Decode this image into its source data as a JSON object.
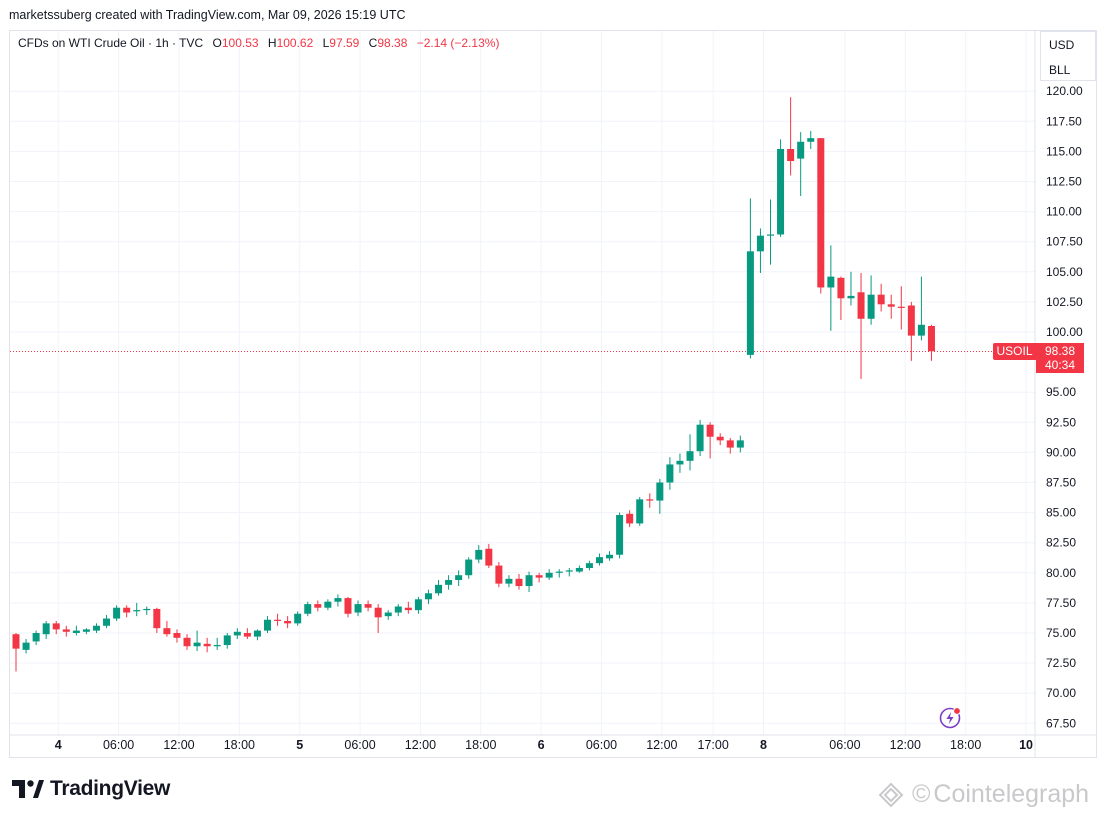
{
  "header": {
    "credit": "marketssuberg created with TradingView.com, Mar 09, 2026 15:19 UTC"
  },
  "legend": {
    "symbol": "CFDs on WTI Crude Oil · 1h · TVC",
    "o_label": "O",
    "o_value": "100.53",
    "h_label": "H",
    "h_value": "100.62",
    "l_label": "L",
    "l_value": "97.59",
    "c_label": "C",
    "c_value": "98.38",
    "change": "−2.14 (−2.13%)"
  },
  "scale": {
    "currency": "USD",
    "unit": "BLL"
  },
  "price_tag": {
    "symbol": "USOIL",
    "price": "98.38",
    "countdown": "40:34"
  },
  "brand": {
    "name": "TradingView"
  },
  "watermark": {
    "text": "Cointelegraph"
  },
  "colors": {
    "up": "#089981",
    "down": "#f23645",
    "grid": "#f0f3fa",
    "text": "#131722"
  },
  "chart_data": {
    "type": "candlestick",
    "y_ticks": [
      "67.50",
      "70.00",
      "72.50",
      "75.00",
      "77.50",
      "80.00",
      "82.50",
      "85.00",
      "87.50",
      "90.00",
      "92.50",
      "95.00",
      "100.00",
      "102.50",
      "105.00",
      "107.50",
      "110.00",
      "112.50",
      "115.00",
      "117.50",
      "120.00"
    ],
    "x_ticks": [
      {
        "label": "4",
        "bar": 4.2,
        "bold": true
      },
      {
        "label": "06:00",
        "bar": 10.2
      },
      {
        "label": "12:00",
        "bar": 16.2
      },
      {
        "label": "18:00",
        "bar": 22.2
      },
      {
        "label": "5",
        "bar": 28.2,
        "bold": true
      },
      {
        "label": "06:00",
        "bar": 34.2
      },
      {
        "label": "12:00",
        "bar": 40.2
      },
      {
        "label": "18:00",
        "bar": 46.2
      },
      {
        "label": "6",
        "bar": 52.2,
        "bold": true
      },
      {
        "label": "06:00",
        "bar": 58.2
      },
      {
        "label": "12:00",
        "bar": 64.2
      },
      {
        "label": "17:00",
        "bar": 69.3
      },
      {
        "label": "8",
        "bar": 74.3,
        "bold": true
      },
      {
        "label": "06:00",
        "bar": 82.4
      },
      {
        "label": "12:00",
        "bar": 88.4
      },
      {
        "label": "18:00",
        "bar": 94.4
      },
      {
        "label": "10",
        "bar": 100.4,
        "bold": true
      }
    ],
    "last_price": 98.38,
    "ylim": [
      66.5,
      121.5
    ],
    "candles": [
      [
        74.9,
        75.0,
        71.8,
        73.7
      ],
      [
        73.6,
        74.5,
        73.3,
        74.2
      ],
      [
        74.3,
        75.2,
        74.0,
        75.0
      ],
      [
        74.9,
        76.0,
        74.5,
        75.8
      ],
      [
        75.8,
        76.0,
        74.9,
        75.3
      ],
      [
        75.3,
        75.6,
        74.7,
        75.1
      ],
      [
        75.0,
        75.6,
        74.8,
        75.2
      ],
      [
        75.1,
        75.4,
        74.9,
        75.3
      ],
      [
        75.2,
        75.8,
        75.0,
        75.6
      ],
      [
        75.6,
        76.5,
        75.4,
        76.2
      ],
      [
        76.2,
        77.3,
        76.0,
        77.1
      ],
      [
        77.1,
        77.3,
        76.3,
        76.7
      ],
      [
        76.8,
        77.5,
        76.4,
        76.9
      ],
      [
        76.9,
        77.2,
        76.5,
        77.0
      ],
      [
        77.0,
        77.1,
        75.0,
        75.4
      ],
      [
        75.4,
        76.0,
        74.7,
        74.9
      ],
      [
        75.0,
        75.3,
        74.2,
        74.6
      ],
      [
        74.6,
        74.9,
        73.6,
        73.9
      ],
      [
        73.9,
        75.2,
        73.5,
        74.2
      ],
      [
        74.1,
        74.6,
        73.4,
        73.9
      ],
      [
        73.9,
        74.6,
        73.6,
        74.0
      ],
      [
        74.0,
        75.0,
        73.7,
        74.8
      ],
      [
        74.8,
        75.4,
        74.5,
        75.1
      ],
      [
        75.0,
        75.4,
        74.5,
        74.7
      ],
      [
        74.7,
        75.3,
        74.4,
        75.2
      ],
      [
        75.2,
        76.4,
        75.0,
        76.1
      ],
      [
        76.1,
        76.6,
        75.6,
        76.0
      ],
      [
        76.0,
        76.4,
        75.4,
        75.8
      ],
      [
        75.8,
        76.8,
        75.6,
        76.6
      ],
      [
        76.6,
        77.6,
        76.4,
        77.4
      ],
      [
        77.4,
        77.7,
        76.8,
        77.1
      ],
      [
        77.1,
        77.8,
        76.9,
        77.6
      ],
      [
        77.6,
        78.2,
        77.2,
        77.9
      ],
      [
        77.9,
        78.0,
        76.3,
        76.6
      ],
      [
        76.7,
        77.7,
        76.4,
        77.4
      ],
      [
        77.4,
        77.7,
        76.8,
        77.1
      ],
      [
        77.1,
        77.4,
        75.0,
        76.3
      ],
      [
        76.4,
        76.9,
        76.1,
        76.7
      ],
      [
        76.7,
        77.4,
        76.4,
        77.2
      ],
      [
        77.1,
        77.6,
        76.6,
        76.9
      ],
      [
        76.9,
        78.0,
        76.6,
        77.8
      ],
      [
        77.8,
        78.6,
        77.4,
        78.3
      ],
      [
        78.3,
        79.4,
        78.1,
        79.0
      ],
      [
        79.0,
        79.8,
        78.6,
        79.4
      ],
      [
        79.4,
        80.2,
        78.9,
        79.8
      ],
      [
        79.8,
        81.3,
        79.5,
        81.1
      ],
      [
        81.1,
        82.3,
        80.8,
        81.9
      ],
      [
        82.0,
        82.4,
        80.4,
        80.6
      ],
      [
        80.6,
        80.9,
        78.8,
        79.1
      ],
      [
        79.1,
        79.8,
        78.8,
        79.5
      ],
      [
        79.5,
        79.9,
        78.6,
        78.9
      ],
      [
        78.9,
        80.1,
        78.4,
        79.8
      ],
      [
        79.8,
        80.0,
        79.2,
        79.6
      ],
      [
        79.6,
        80.3,
        79.4,
        80.0
      ],
      [
        80.0,
        80.3,
        79.6,
        80.1
      ],
      [
        80.1,
        80.4,
        79.7,
        80.2
      ],
      [
        80.1,
        80.6,
        80.0,
        80.4
      ],
      [
        80.4,
        81.0,
        80.2,
        80.8
      ],
      [
        80.8,
        81.6,
        80.6,
        81.3
      ],
      [
        81.2,
        81.8,
        81.0,
        81.5
      ],
      [
        81.5,
        85.0,
        81.2,
        84.8
      ],
      [
        84.9,
        85.2,
        83.8,
        84.1
      ],
      [
        84.1,
        86.3,
        83.9,
        86.1
      ],
      [
        86.1,
        86.6,
        85.4,
        86.0
      ],
      [
        86.0,
        87.8,
        84.9,
        87.5
      ],
      [
        87.5,
        89.6,
        86.9,
        89.0
      ],
      [
        89.0,
        89.9,
        88.3,
        89.3
      ],
      [
        89.3,
        91.5,
        88.5,
        90.1
      ],
      [
        90.1,
        92.7,
        89.7,
        92.3
      ],
      [
        92.3,
        92.5,
        89.5,
        91.3
      ],
      [
        91.3,
        91.6,
        90.6,
        91.0
      ],
      [
        91.0,
        91.2,
        89.9,
        90.4
      ],
      [
        90.4,
        91.4,
        90.0,
        91.0
      ],
      [
        98.1,
        111.1,
        97.8,
        106.7
      ],
      [
        106.7,
        108.6,
        104.9,
        108.0
      ],
      [
        108.0,
        111.0,
        105.6,
        108.1
      ],
      [
        108.1,
        116.0,
        107.9,
        115.2
      ],
      [
        115.2,
        119.5,
        113.0,
        114.2
      ],
      [
        114.4,
        116.6,
        111.3,
        115.8
      ],
      [
        115.8,
        116.7,
        115.2,
        116.1
      ],
      [
        116.1,
        116.1,
        103.2,
        103.7
      ],
      [
        103.7,
        107.2,
        100.1,
        104.6
      ],
      [
        104.5,
        104.6,
        101.0,
        102.8
      ],
      [
        102.8,
        105.0,
        102.2,
        103.0
      ],
      [
        103.3,
        104.9,
        96.1,
        101.1
      ],
      [
        101.1,
        104.7,
        100.6,
        103.1
      ],
      [
        103.1,
        104.0,
        101.7,
        102.3
      ],
      [
        102.3,
        103.1,
        101.1,
        102.1
      ],
      [
        102.1,
        103.8,
        100.2,
        102.0
      ],
      [
        102.2,
        102.5,
        97.6,
        99.7
      ],
      [
        99.7,
        104.6,
        99.3,
        100.6
      ],
      [
        100.5,
        100.6,
        97.6,
        98.4
      ]
    ]
  }
}
